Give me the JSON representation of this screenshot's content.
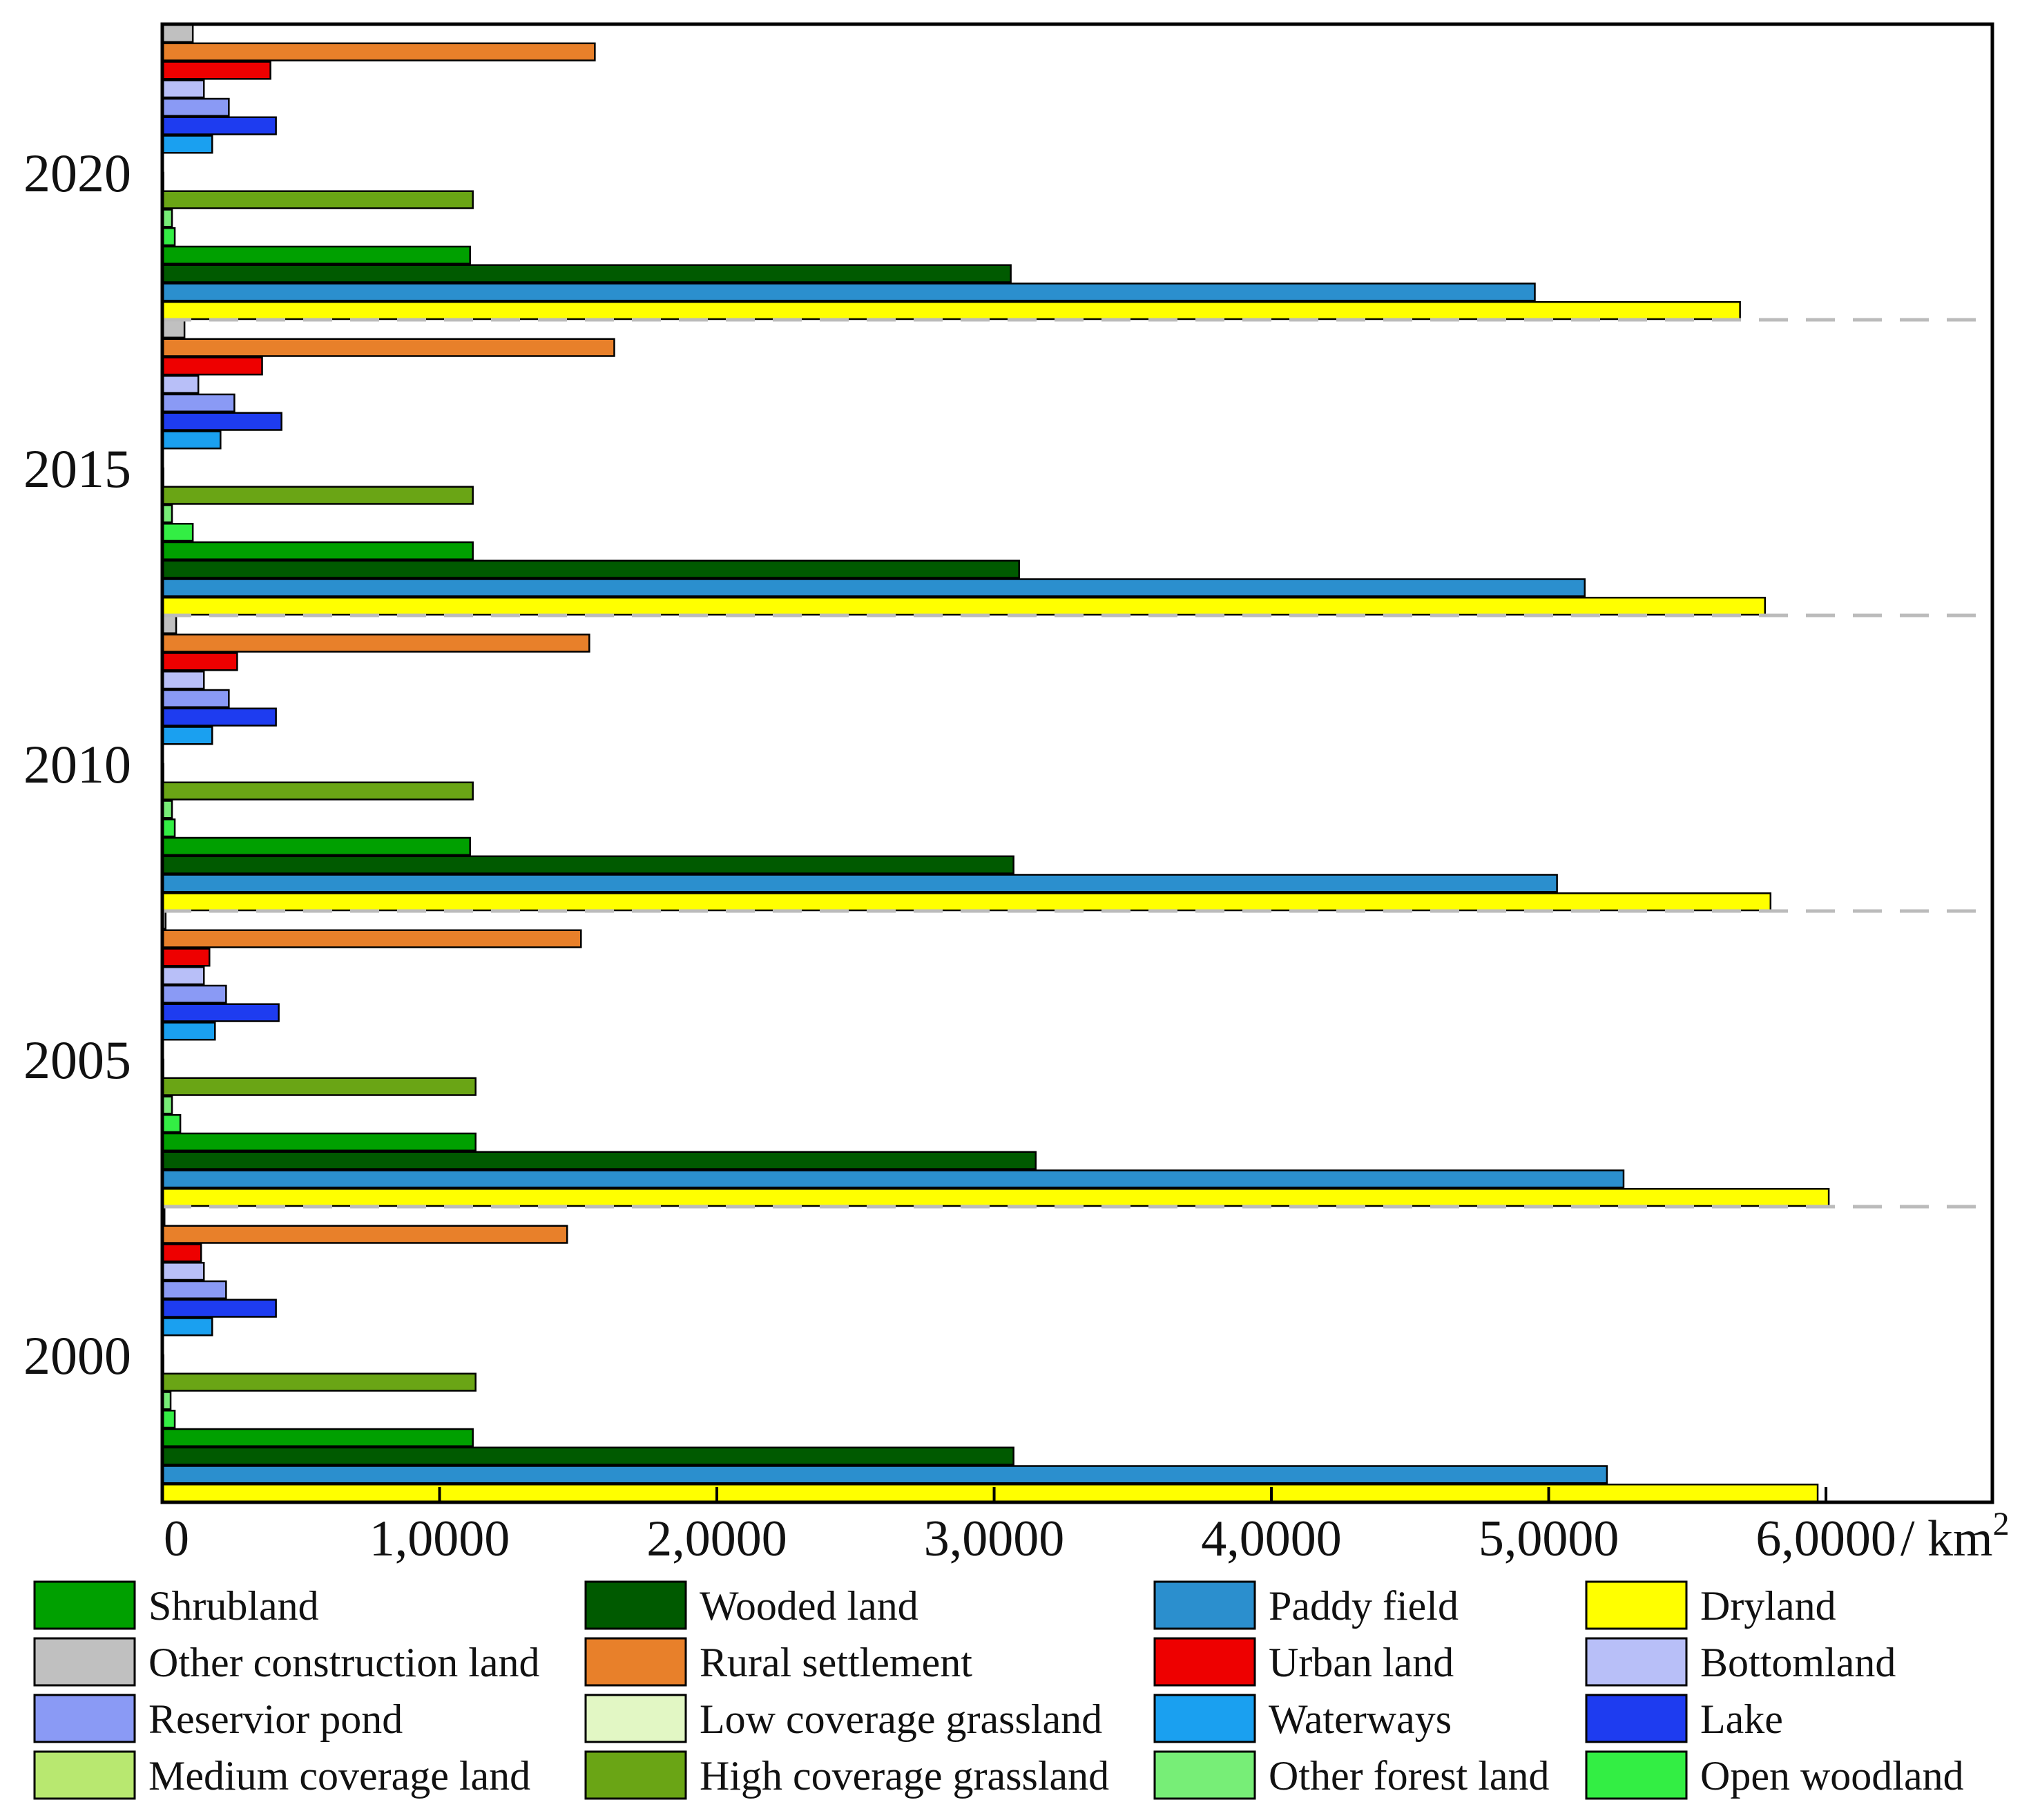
{
  "chart_data": {
    "type": "bar",
    "orientation": "horizontal",
    "groups": [
      "2020",
      "2015",
      "2010",
      "2005",
      "2000"
    ],
    "xlim": [
      0,
      66000
    ],
    "x_ticks": [
      0,
      10000,
      20000,
      30000,
      40000,
      50000,
      60000
    ],
    "x_tick_labels": [
      "0",
      "1,0000",
      "2,0000",
      "3,0000",
      "4,0000",
      "5,0000",
      "6,0000"
    ],
    "x_unit_label": "/ km",
    "x_unit_superscript": "2",
    "grid": false,
    "group_separators": "dashed",
    "legend_position": "bottom",
    "series": [
      {
        "name": "Dryland",
        "color": "#FFFF00",
        "values": [
          56900,
          57800,
          58000,
          60100,
          59700
        ]
      },
      {
        "name": "Paddy field",
        "color": "#2B8FCE",
        "values": [
          49500,
          51300,
          50300,
          52700,
          52100
        ]
      },
      {
        "name": "Wooded land",
        "color": "#005A00",
        "values": [
          30600,
          30900,
          30700,
          31500,
          30700
        ]
      },
      {
        "name": "Shrubland",
        "color": "#00A000",
        "values": [
          11100,
          11200,
          11100,
          11300,
          11200
        ]
      },
      {
        "name": "Open woodland",
        "color": "#33EE44",
        "values": [
          450,
          1100,
          450,
          650,
          450
        ]
      },
      {
        "name": "Other forest land",
        "color": "#77EE77",
        "values": [
          350,
          350,
          350,
          350,
          300
        ]
      },
      {
        "name": "High coverage grassland",
        "color": "#6AA515",
        "values": [
          11200,
          11200,
          11200,
          11300,
          11300
        ]
      },
      {
        "name": "Medium coverage land",
        "color": "#B8E870",
        "values": [
          40,
          40,
          40,
          40,
          40
        ]
      },
      {
        "name": "Low coverage grassland",
        "color": "#E2F7C4",
        "values": [
          20,
          20,
          20,
          20,
          20
        ]
      },
      {
        "name": "Waterways",
        "color": "#1AA0F0",
        "values": [
          1800,
          2100,
          1800,
          1900,
          1800
        ]
      },
      {
        "name": "Lake",
        "color": "#1E3CF0",
        "values": [
          4100,
          4300,
          4100,
          4200,
          4100
        ]
      },
      {
        "name": "Reservior pond",
        "color": "#8A9AF5",
        "values": [
          2400,
          2600,
          2400,
          2300,
          2300
        ]
      },
      {
        "name": "Bottomland",
        "color": "#B8BFF8",
        "values": [
          1500,
          1300,
          1500,
          1500,
          1500
        ]
      },
      {
        "name": "Urban land",
        "color": "#EE0000",
        "values": [
          3900,
          3600,
          2700,
          1700,
          1400
        ]
      },
      {
        "name": "Rural settlement",
        "color": "#E8802A",
        "values": [
          15600,
          16300,
          15400,
          15100,
          14600
        ]
      },
      {
        "name": "Other construction land",
        "color": "#C0C0C0",
        "values": [
          1100,
          800,
          500,
          120,
          80
        ]
      }
    ],
    "legend_order": [
      "Shrubland",
      "Wooded land",
      "Paddy field",
      "Dryland",
      "Other construction land",
      "Rural settlement",
      "Urban land",
      "Bottomland",
      "Reservior pond",
      "Low coverage grassland",
      "Waterways",
      "Lake",
      "Medium coverage land",
      "High coverage grassland",
      "Other forest land",
      "Open woodland"
    ]
  }
}
